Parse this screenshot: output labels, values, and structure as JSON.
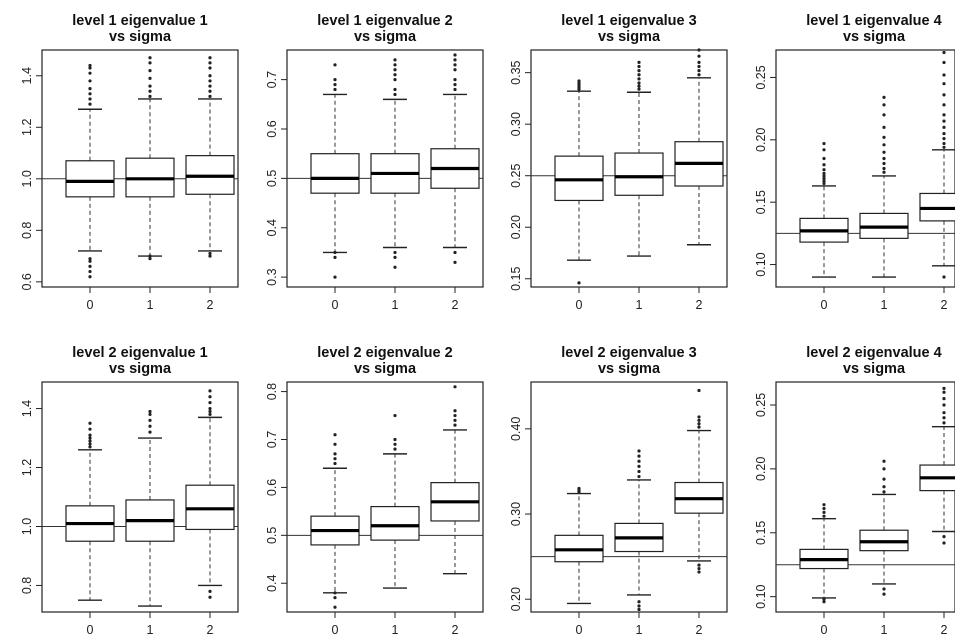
{
  "chart_data": [
    {
      "type": "boxplot",
      "title": "level 1 eigenvalue 1\nvs sigma",
      "categories": [
        "0",
        "1",
        "2"
      ],
      "yticks": [
        "0.6",
        "0.8",
        "1.0",
        "1.2",
        "1.4"
      ],
      "ylim": [
        0.58,
        1.5
      ],
      "reference_line": 1.0,
      "boxes": [
        {
          "whisker_low": 0.72,
          "q1": 0.93,
          "median": 0.99,
          "q3": 1.07,
          "whisker_high": 1.27,
          "outliers": [
            0.62,
            0.64,
            0.66,
            0.68,
            0.69,
            1.29,
            1.31,
            1.33,
            1.35,
            1.38,
            1.41,
            1.43,
            1.44
          ]
        },
        {
          "whisker_low": 0.7,
          "q1": 0.93,
          "median": 1.0,
          "q3": 1.08,
          "whisker_high": 1.31,
          "outliers": [
            0.69,
            0.7,
            1.32,
            1.34,
            1.36,
            1.39,
            1.42,
            1.45,
            1.47
          ]
        },
        {
          "whisker_low": 0.72,
          "q1": 0.94,
          "median": 1.01,
          "q3": 1.09,
          "whisker_high": 1.31,
          "outliers": [
            0.7,
            0.71,
            1.32,
            1.34,
            1.36,
            1.38,
            1.4,
            1.43,
            1.45,
            1.47
          ]
        }
      ]
    },
    {
      "type": "boxplot",
      "title": "level 1 eigenvalue 2\nvs sigma",
      "categories": [
        "0",
        "1",
        "2"
      ],
      "yticks": [
        "0.3",
        "0.4",
        "0.5",
        "0.6",
        "0.7"
      ],
      "ylim": [
        0.28,
        0.76
      ],
      "reference_line": 0.5,
      "boxes": [
        {
          "whisker_low": 0.35,
          "q1": 0.47,
          "median": 0.5,
          "q3": 0.55,
          "whisker_high": 0.67,
          "outliers": [
            0.3,
            0.34,
            0.35,
            0.68,
            0.69,
            0.7,
            0.73
          ]
        },
        {
          "whisker_low": 0.36,
          "q1": 0.47,
          "median": 0.51,
          "q3": 0.55,
          "whisker_high": 0.66,
          "outliers": [
            0.32,
            0.34,
            0.35,
            0.67,
            0.68,
            0.7,
            0.71,
            0.72,
            0.73,
            0.74
          ]
        },
        {
          "whisker_low": 0.36,
          "q1": 0.48,
          "median": 0.52,
          "q3": 0.56,
          "whisker_high": 0.67,
          "outliers": [
            0.33,
            0.35,
            0.68,
            0.69,
            0.7,
            0.72,
            0.73,
            0.74,
            0.75
          ]
        }
      ]
    },
    {
      "type": "boxplot",
      "title": "level 1 eigenvalue 3\nvs sigma",
      "categories": [
        "0",
        "1",
        "2"
      ],
      "yticks": [
        "0.15",
        "0.20",
        "0.25",
        "0.30",
        "0.35"
      ],
      "ylim": [
        0.142,
        0.372
      ],
      "reference_line": 0.25,
      "boxes": [
        {
          "whisker_low": 0.168,
          "q1": 0.226,
          "median": 0.246,
          "q3": 0.269,
          "whisker_high": 0.332,
          "outliers": [
            0.146,
            0.334,
            0.336,
            0.338,
            0.34,
            0.342
          ]
        },
        {
          "whisker_low": 0.172,
          "q1": 0.231,
          "median": 0.249,
          "q3": 0.272,
          "whisker_high": 0.331,
          "outliers": [
            0.334,
            0.337,
            0.34,
            0.344,
            0.348,
            0.352,
            0.356,
            0.36
          ]
        },
        {
          "whisker_low": 0.183,
          "q1": 0.24,
          "median": 0.262,
          "q3": 0.283,
          "whisker_high": 0.345,
          "outliers": [
            0.348,
            0.352,
            0.356,
            0.36,
            0.366,
            0.372
          ]
        }
      ]
    },
    {
      "type": "boxplot",
      "title": "level 1 eigenvalue 4\nvs sigma",
      "categories": [
        "0",
        "1",
        "2"
      ],
      "yticks": [
        "0.10",
        "0.15",
        "0.20",
        "0.25"
      ],
      "ylim": [
        0.082,
        0.272
      ],
      "reference_line": 0.125,
      "boxes": [
        {
          "whisker_low": 0.09,
          "q1": 0.118,
          "median": 0.127,
          "q3": 0.137,
          "whisker_high": 0.163,
          "outliers": [
            0.165,
            0.167,
            0.169,
            0.171,
            0.173,
            0.176,
            0.18,
            0.185,
            0.192,
            0.197
          ]
        },
        {
          "whisker_low": 0.09,
          "q1": 0.121,
          "median": 0.13,
          "q3": 0.141,
          "whisker_high": 0.171,
          "outliers": [
            0.174,
            0.177,
            0.181,
            0.185,
            0.19,
            0.196,
            0.202,
            0.21,
            0.22,
            0.228,
            0.234
          ]
        },
        {
          "whisker_low": 0.099,
          "q1": 0.135,
          "median": 0.145,
          "q3": 0.157,
          "whisker_high": 0.192,
          "outliers": [
            0.09,
            0.194,
            0.197,
            0.201,
            0.205,
            0.21,
            0.215,
            0.22,
            0.228,
            0.236,
            0.245,
            0.252,
            0.262,
            0.27
          ]
        }
      ]
    },
    {
      "type": "boxplot",
      "title": "level 2 eigenvalue 1\nvs sigma",
      "categories": [
        "0",
        "1",
        "2"
      ],
      "yticks": [
        "0.8",
        "1.0",
        "1.2",
        "1.4"
      ],
      "ylim": [
        0.71,
        1.49
      ],
      "reference_line": 1.0,
      "boxes": [
        {
          "whisker_low": 0.75,
          "q1": 0.95,
          "median": 1.01,
          "q3": 1.07,
          "whisker_high": 1.26,
          "outliers": [
            1.27,
            1.28,
            1.29,
            1.3,
            1.31,
            1.33,
            1.35
          ]
        },
        {
          "whisker_low": 0.73,
          "q1": 0.95,
          "median": 1.02,
          "q3": 1.09,
          "whisker_high": 1.3,
          "outliers": [
            1.32,
            1.34,
            1.36,
            1.38,
            1.39
          ]
        },
        {
          "whisker_low": 0.8,
          "q1": 0.99,
          "median": 1.06,
          "q3": 1.14,
          "whisker_high": 1.37,
          "outliers": [
            0.76,
            0.78,
            1.38,
            1.39,
            1.4,
            1.42,
            1.44,
            1.46
          ]
        }
      ]
    },
    {
      "type": "boxplot",
      "title": "level 2 eigenvalue 2\nvs sigma",
      "categories": [
        "0",
        "1",
        "2"
      ],
      "yticks": [
        "0.4",
        "0.5",
        "0.6",
        "0.7",
        "0.8"
      ],
      "ylim": [
        0.34,
        0.82
      ],
      "reference_line": 0.5,
      "boxes": [
        {
          "whisker_low": 0.38,
          "q1": 0.48,
          "median": 0.51,
          "q3": 0.54,
          "whisker_high": 0.64,
          "outliers": [
            0.35,
            0.37,
            0.38,
            0.65,
            0.66,
            0.67,
            0.69,
            0.71
          ]
        },
        {
          "whisker_low": 0.39,
          "q1": 0.49,
          "median": 0.52,
          "q3": 0.56,
          "whisker_high": 0.67,
          "outliers": [
            0.68,
            0.69,
            0.7,
            0.75
          ]
        },
        {
          "whisker_low": 0.42,
          "q1": 0.53,
          "median": 0.57,
          "q3": 0.61,
          "whisker_high": 0.72,
          "outliers": [
            0.73,
            0.74,
            0.75,
            0.76,
            0.81
          ]
        }
      ]
    },
    {
      "type": "boxplot",
      "title": "level 2 eigenvalue 3\nvs sigma",
      "categories": [
        "0",
        "1",
        "2"
      ],
      "yticks": [
        "0.20",
        "0.30",
        "0.40"
      ],
      "ylim": [
        0.185,
        0.455
      ],
      "reference_line": 0.25,
      "boxes": [
        {
          "whisker_low": 0.195,
          "q1": 0.244,
          "median": 0.258,
          "q3": 0.275,
          "whisker_high": 0.324,
          "outliers": [
            0.326,
            0.328,
            0.33
          ]
        },
        {
          "whisker_low": 0.205,
          "q1": 0.256,
          "median": 0.272,
          "q3": 0.289,
          "whisker_high": 0.34,
          "outliers": [
            0.188,
            0.192,
            0.197,
            0.344,
            0.35,
            0.356,
            0.362,
            0.368,
            0.374
          ]
        },
        {
          "whisker_low": 0.245,
          "q1": 0.301,
          "median": 0.318,
          "q3": 0.337,
          "whisker_high": 0.398,
          "outliers": [
            0.232,
            0.236,
            0.24,
            0.402,
            0.406,
            0.41,
            0.414,
            0.445
          ]
        }
      ]
    },
    {
      "type": "boxplot",
      "title": "level 2 eigenvalue 4\nvs sigma",
      "categories": [
        "0",
        "1",
        "2"
      ],
      "yticks": [
        "0.10",
        "0.15",
        "0.20",
        "0.25"
      ],
      "ylim": [
        0.088,
        0.268
      ],
      "reference_line": 0.125,
      "boxes": [
        {
          "whisker_low": 0.099,
          "q1": 0.122,
          "median": 0.129,
          "q3": 0.137,
          "whisker_high": 0.161,
          "outliers": [
            0.096,
            0.098,
            0.163,
            0.166,
            0.169,
            0.172
          ]
        },
        {
          "whisker_low": 0.11,
          "q1": 0.136,
          "median": 0.143,
          "q3": 0.152,
          "whisker_high": 0.18,
          "outliers": [
            0.102,
            0.106,
            0.182,
            0.186,
            0.192,
            0.2,
            0.206
          ]
        },
        {
          "whisker_low": 0.151,
          "q1": 0.183,
          "median": 0.193,
          "q3": 0.203,
          "whisker_high": 0.233,
          "outliers": [
            0.142,
            0.147,
            0.236,
            0.24,
            0.244,
            0.25,
            0.255,
            0.26,
            0.263
          ]
        }
      ]
    }
  ]
}
